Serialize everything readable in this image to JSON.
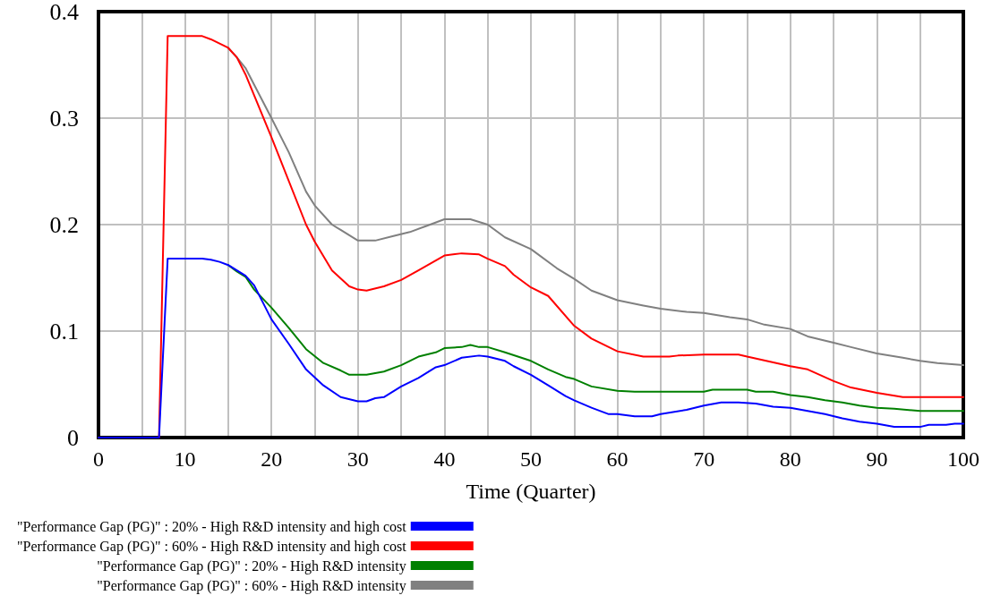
{
  "chart_data": {
    "type": "line",
    "xlabel": "Time (Quarter)",
    "xlim": [
      0,
      100
    ],
    "xticks": [
      0,
      {
        "value": 5,
        "label": null
      },
      10,
      {
        "value": 15,
        "label": null
      },
      20,
      {
        "value": 25,
        "label": null
      },
      30,
      {
        "value": 35,
        "label": null
      },
      40,
      {
        "value": 45,
        "label": null
      },
      50,
      {
        "value": 55,
        "label": null
      },
      60,
      {
        "value": 65,
        "label": null
      },
      70,
      {
        "value": 75,
        "label": null
      },
      80,
      {
        "value": 85,
        "label": null
      },
      90,
      {
        "value": 95,
        "label": null
      },
      100
    ],
    "ylim": [
      0,
      0.4
    ],
    "yticks": [
      0,
      0.1,
      0.2,
      0.3,
      0.4
    ],
    "grid": true,
    "legend": "bottom",
    "marker": "none",
    "line_style": "solid",
    "series": [
      {
        "name": "\"Performance Gap (PG)\" : 20% - High R&D intensity and high cost",
        "color": "#0000ff",
        "x": [
          0,
          7,
          8,
          12,
          13,
          14,
          15,
          17,
          18,
          20,
          22,
          24,
          26,
          28,
          30,
          31,
          32,
          33,
          35,
          37,
          39,
          40,
          42,
          44,
          45,
          47,
          48,
          50,
          52,
          54,
          55,
          57,
          59,
          60,
          62,
          64,
          65,
          68,
          70,
          72,
          74,
          76,
          78,
          80,
          82,
          84,
          86,
          88,
          90,
          92,
          95,
          96,
          98,
          99,
          100
        ],
        "values": [
          0,
          0,
          0.168,
          0.168,
          0.167,
          0.165,
          0.162,
          0.152,
          0.143,
          0.111,
          0.088,
          0.064,
          0.049,
          0.038,
          0.034,
          0.034,
          0.037,
          0.038,
          0.048,
          0.056,
          0.066,
          0.068,
          0.075,
          0.077,
          0.076,
          0.072,
          0.067,
          0.059,
          0.049,
          0.039,
          0.035,
          0.028,
          0.022,
          0.022,
          0.02,
          0.02,
          0.022,
          0.026,
          0.03,
          0.033,
          0.033,
          0.032,
          0.029,
          0.028,
          0.025,
          0.022,
          0.018,
          0.015,
          0.013,
          0.01,
          0.01,
          0.012,
          0.012,
          0.013,
          0.013
        ]
      },
      {
        "name": "\"Performance Gap (PG)\" : 60% - High R&D intensity and high cost",
        "color": "#ff0000",
        "x": [
          0,
          7,
          8,
          12,
          13,
          15,
          16,
          17,
          20,
          24,
          25,
          27,
          29,
          30,
          31,
          33,
          35,
          37,
          40,
          42,
          44,
          45,
          47,
          48,
          50,
          52,
          55,
          57,
          60,
          63,
          66,
          67,
          70,
          74,
          75,
          80,
          82,
          85,
          87,
          90,
          93,
          100
        ],
        "values": [
          0,
          0,
          0.377,
          0.377,
          0.374,
          0.366,
          0.357,
          0.341,
          0.282,
          0.2,
          0.184,
          0.157,
          0.142,
          0.139,
          0.138,
          0.142,
          0.148,
          0.157,
          0.171,
          0.173,
          0.172,
          0.168,
          0.161,
          0.153,
          0.141,
          0.133,
          0.105,
          0.093,
          0.081,
          0.076,
          0.076,
          0.077,
          0.078,
          0.078,
          0.076,
          0.067,
          0.064,
          0.053,
          0.047,
          0.042,
          0.038,
          0.038
        ]
      },
      {
        "name": "\"Performance Gap (PG)\" : 20% - High R&D intensity",
        "color": "#008000",
        "x": [
          15,
          16,
          17,
          18,
          20,
          22,
          24,
          26,
          28,
          29,
          31,
          33,
          35,
          37,
          39,
          40,
          42,
          43,
          44,
          45,
          47,
          50,
          52,
          54,
          55,
          57,
          60,
          62,
          67,
          68,
          70,
          71,
          75,
          76,
          78,
          80,
          82,
          84,
          86,
          88,
          90,
          92,
          95,
          100
        ],
        "values": [
          0.162,
          0.156,
          0.151,
          0.139,
          0.122,
          0.103,
          0.083,
          0.07,
          0.063,
          0.059,
          0.059,
          0.062,
          0.068,
          0.076,
          0.08,
          0.084,
          0.085,
          0.087,
          0.085,
          0.085,
          0.08,
          0.072,
          0.064,
          0.057,
          0.055,
          0.048,
          0.044,
          0.043,
          0.043,
          0.043,
          0.043,
          0.045,
          0.045,
          0.043,
          0.043,
          0.04,
          0.038,
          0.035,
          0.033,
          0.03,
          0.028,
          0.027,
          0.025,
          0.025
        ]
      },
      {
        "name": "\"Performance Gap (PG)\" : 60% - High R&D intensity",
        "color": "#808080",
        "x": [
          15,
          16,
          17,
          20,
          22,
          24,
          25,
          27,
          28,
          30,
          32,
          34,
          36,
          38,
          40,
          43,
          45,
          47,
          50,
          53,
          55,
          57,
          60,
          63,
          65,
          68,
          70,
          73,
          75,
          77,
          80,
          82,
          85,
          87,
          90,
          93,
          95,
          97,
          100
        ],
        "values": [
          0.366,
          0.357,
          0.347,
          0.3,
          0.268,
          0.231,
          0.218,
          0.2,
          0.195,
          0.185,
          0.185,
          0.189,
          0.193,
          0.199,
          0.205,
          0.205,
          0.2,
          0.188,
          0.177,
          0.159,
          0.149,
          0.138,
          0.129,
          0.124,
          0.121,
          0.118,
          0.117,
          0.113,
          0.111,
          0.106,
          0.102,
          0.095,
          0.089,
          0.085,
          0.079,
          0.075,
          0.072,
          0.07,
          0.068
        ]
      }
    ]
  }
}
